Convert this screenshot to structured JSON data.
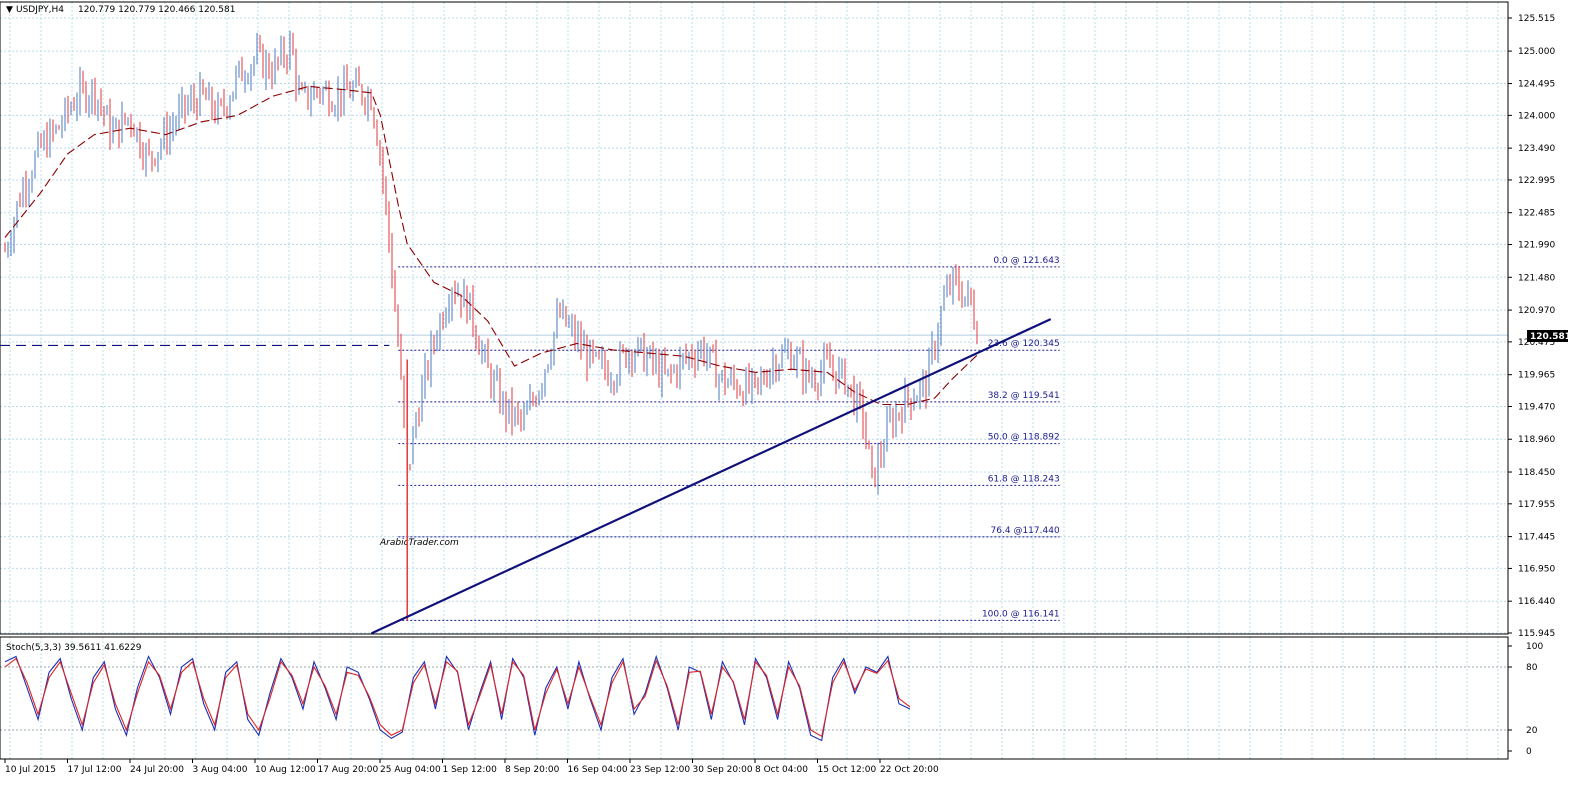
{
  "header": {
    "collapse_glyph": "▼",
    "symbol": "USDJPY,H4",
    "ohlc": "120.779 120.779 120.466 120.581"
  },
  "colors": {
    "background": "#ffffff",
    "grid": "#b9dcec",
    "bull_candle": "#4a78c0",
    "bear_candle": "#e2383c",
    "moving_average": "#8b0000",
    "fib_lines": "#1a1a8c",
    "trendline": "#10107a",
    "stoch_main": "#1c2fb5",
    "stoch_signal": "#e02525",
    "price_box": "#000000"
  },
  "chart_data": [
    {
      "type": "candlestick",
      "symbol": "USDJPY",
      "timeframe": "H4",
      "current_price": "120.581",
      "y_ticks": [
        "125.515",
        "125.000",
        "124.495",
        "124.000",
        "123.490",
        "122.995",
        "122.485",
        "121.990",
        "121.480",
        "120.970",
        "120.475",
        "119.965",
        "119.470",
        "118.960",
        "118.450",
        "117.955",
        "117.445",
        "116.950",
        "116.440",
        "115.945"
      ],
      "ylim": [
        115.945,
        125.515
      ],
      "x_ticks": [
        "10 Jul 2015",
        "17 Jul 12:00",
        "24 Jul 20:00",
        "3 Aug 04:00",
        "10 Aug 12:00",
        "17 Aug 20:00",
        "25 Aug 04:00",
        "1 Sep 12:00",
        "8 Sep 20:00",
        "16 Sep 04:00",
        "23 Sep 12:00",
        "30 Sep 20:00",
        "8 Oct 04:00",
        "15 Oct 12:00",
        "22 Oct 20:00"
      ],
      "fibonacci": [
        {
          "label": "0.0 @ 121.643",
          "price": 121.643
        },
        {
          "label": "23.6 @ 120.345",
          "price": 120.345
        },
        {
          "label": "38.2 @ 119.541",
          "price": 119.541
        },
        {
          "label": "50.0 @ 118.892",
          "price": 118.892
        },
        {
          "label": "61.8 @ 118.243",
          "price": 118.243
        },
        {
          "label": "76.4 @117.440",
          "price": 117.44
        },
        {
          "label": "100.0 @ 116.141",
          "price": 116.141
        }
      ],
      "horizontal_level": 120.42,
      "trendline": {
        "from": [
          "20 Aug 2015",
          115.94
        ],
        "to": [
          "4 Nov 2015",
          120.83
        ]
      },
      "price_path": [
        [
          "10 Jul 2015",
          121.9
        ],
        [
          "12 Jul 2015",
          122.9
        ],
        [
          "14 Jul 2015",
          123.5
        ],
        [
          "16 Jul 2015",
          123.8
        ],
        [
          "18 Jul 2015",
          124.3
        ],
        [
          "20 Jul 2015",
          124.4
        ],
        [
          "22 Jul 2015",
          123.7
        ],
        [
          "24 Jul 2015",
          124.0
        ],
        [
          "26 Jul 2015",
          123.3
        ],
        [
          "28 Jul 2015",
          123.7
        ],
        [
          "30 Jul 2015",
          124.1
        ],
        [
          "1 Aug 2015",
          124.3
        ],
        [
          "3 Aug 2015",
          124.0
        ],
        [
          "5 Aug 2015",
          124.6
        ],
        [
          "7 Aug 2015",
          124.9
        ],
        [
          "9 Aug 2015",
          124.7
        ],
        [
          "11 Aug 2015",
          125.1
        ],
        [
          "12 Aug 2015",
          124.2
        ],
        [
          "14 Aug 2015",
          124.4
        ],
        [
          "16 Aug 2015",
          124.3
        ],
        [
          "18 Aug 2015",
          124.4
        ],
        [
          "20 Aug 2015",
          124.3
        ],
        [
          "21 Aug 2015",
          123.4
        ],
        [
          "22 Aug 2015",
          122.0
        ],
        [
          "23 Aug 2015",
          120.4
        ],
        [
          "24 Aug 2015",
          118.4
        ],
        [
          "25 Aug 2015",
          119.3
        ],
        [
          "27 Aug 2015",
          120.5
        ],
        [
          "29 Aug 2015",
          121.4
        ],
        [
          "31 Aug 2015",
          121.0
        ],
        [
          "2 Sep 2015",
          120.0
        ],
        [
          "4 Sep 2015",
          119.4
        ],
        [
          "6 Sep 2015",
          119.2
        ],
        [
          "8 Sep 2015",
          119.9
        ],
        [
          "10 Sep 2015",
          120.9
        ],
        [
          "12 Sep 2015",
          120.5
        ],
        [
          "14 Sep 2015",
          120.1
        ],
        [
          "16 Sep 2015",
          120.0
        ],
        [
          "18 Sep 2015",
          120.4
        ],
        [
          "20 Sep 2015",
          120.2
        ],
        [
          "22 Sep 2015",
          119.9
        ],
        [
          "24 Sep 2015",
          120.2
        ],
        [
          "26 Sep 2015",
          120.4
        ],
        [
          "28 Sep 2015",
          119.9
        ],
        [
          "30 Sep 2015",
          119.8
        ],
        [
          "2 Oct 2015",
          119.7
        ],
        [
          "4 Oct 2015",
          120.2
        ],
        [
          "6 Oct 2015",
          120.3
        ],
        [
          "8 Oct 2015",
          119.9
        ],
        [
          "10 Oct 2015",
          120.1
        ],
        [
          "12 Oct 2015",
          119.9
        ],
        [
          "14 Oct 2015",
          119.3
        ],
        [
          "15 Oct 2015",
          118.3
        ],
        [
          "17 Oct 2015",
          119.2
        ],
        [
          "19 Oct 2015",
          119.6
        ],
        [
          "21 Oct 2015",
          119.8
        ],
        [
          "23 Oct 2015",
          121.1
        ],
        [
          "24 Oct 2015",
          121.4
        ],
        [
          "26 Oct 2015",
          121.1
        ],
        [
          "27 Oct 2015",
          120.58
        ]
      ],
      "moving_average": [
        [
          "10 Jul 2015",
          122.1
        ],
        [
          "14 Jul 2015",
          122.8
        ],
        [
          "17 Jul 2015",
          123.4
        ],
        [
          "20 Jul 2015",
          123.7
        ],
        [
          "24 Jul 2015",
          123.8
        ],
        [
          "28 Jul 2015",
          123.7
        ],
        [
          "1 Aug 2015",
          123.9
        ],
        [
          "5 Aug 2015",
          124.0
        ],
        [
          "9 Aug 2015",
          124.3
        ],
        [
          "13 Aug 2015",
          124.45
        ],
        [
          "17 Aug 2015",
          124.4
        ],
        [
          "20 Aug 2015",
          124.35
        ],
        [
          "21 Aug 2015",
          124.0
        ],
        [
          "22 Aug 2015",
          123.3
        ],
        [
          "23 Aug 2015",
          122.6
        ],
        [
          "24 Aug 2015",
          122.0
        ],
        [
          "27 Aug 2015",
          121.4
        ],
        [
          "30 Aug 2015",
          121.2
        ],
        [
          "2 Sep 2015",
          120.8
        ],
        [
          "5 Sep 2015",
          120.1
        ],
        [
          "8 Sep 2015",
          120.3
        ],
        [
          "12 Sep 2015",
          120.45
        ],
        [
          "16 Sep 2015",
          120.35
        ],
        [
          "20 Sep 2015",
          120.3
        ],
        [
          "24 Sep 2015",
          120.25
        ],
        [
          "28 Sep 2015",
          120.1
        ],
        [
          "2 Oct 2015",
          120.0
        ],
        [
          "6 Oct 2015",
          120.05
        ],
        [
          "10 Oct 2015",
          120.0
        ],
        [
          "13 Oct 2015",
          119.7
        ],
        [
          "16 Oct 2015",
          119.5
        ],
        [
          "19 Oct 2015",
          119.5
        ],
        [
          "22 Oct 2015",
          119.6
        ],
        [
          "24 Oct 2015",
          119.9
        ],
        [
          "27 Oct 2015",
          120.3
        ]
      ]
    },
    {
      "type": "line",
      "indicator": "Stoch(5,3,3)",
      "label": "Stoch(5,3,3) 39.5611 41.6229",
      "y_ticks": [
        "100",
        "80",
        "20",
        "0"
      ],
      "ylim": [
        0,
        100
      ],
      "series": [
        {
          "values": [
            85,
            90,
            60,
            30,
            75,
            88,
            50,
            20,
            70,
            85,
            40,
            15,
            60,
            90,
            70,
            35,
            80,
            88,
            45,
            20,
            75,
            85,
            30,
            15,
            55,
            88,
            70,
            40,
            85,
            60,
            30,
            80,
            75,
            50,
            20,
            12,
            18,
            70,
            85,
            40,
            90,
            75,
            20,
            55,
            85,
            30,
            88,
            70,
            15,
            60,
            80,
            40,
            85,
            50,
            20,
            70,
            88,
            35,
            55,
            90,
            60,
            20,
            80,
            75,
            30,
            85,
            65,
            25,
            88,
            70,
            30,
            85,
            60,
            15,
            10,
            70,
            88,
            55,
            80,
            75,
            90,
            45,
            40
          ]
        },
        {
          "values": [
            80,
            88,
            65,
            35,
            70,
            85,
            55,
            25,
            65,
            82,
            45,
            20,
            55,
            85,
            72,
            40,
            75,
            85,
            50,
            25,
            70,
            82,
            35,
            20,
            50,
            85,
            72,
            45,
            80,
            62,
            35,
            75,
            72,
            52,
            25,
            15,
            20,
            65,
            82,
            45,
            85,
            76,
            25,
            52,
            82,
            35,
            85,
            72,
            20,
            55,
            78,
            45,
            80,
            52,
            25,
            65,
            85,
            40,
            52,
            86,
            62,
            25,
            75,
            76,
            35,
            80,
            66,
            30,
            85,
            72,
            35,
            80,
            62,
            20,
            14,
            65,
            85,
            58,
            78,
            74,
            86,
            50,
            42
          ]
        }
      ]
    }
  ]
}
